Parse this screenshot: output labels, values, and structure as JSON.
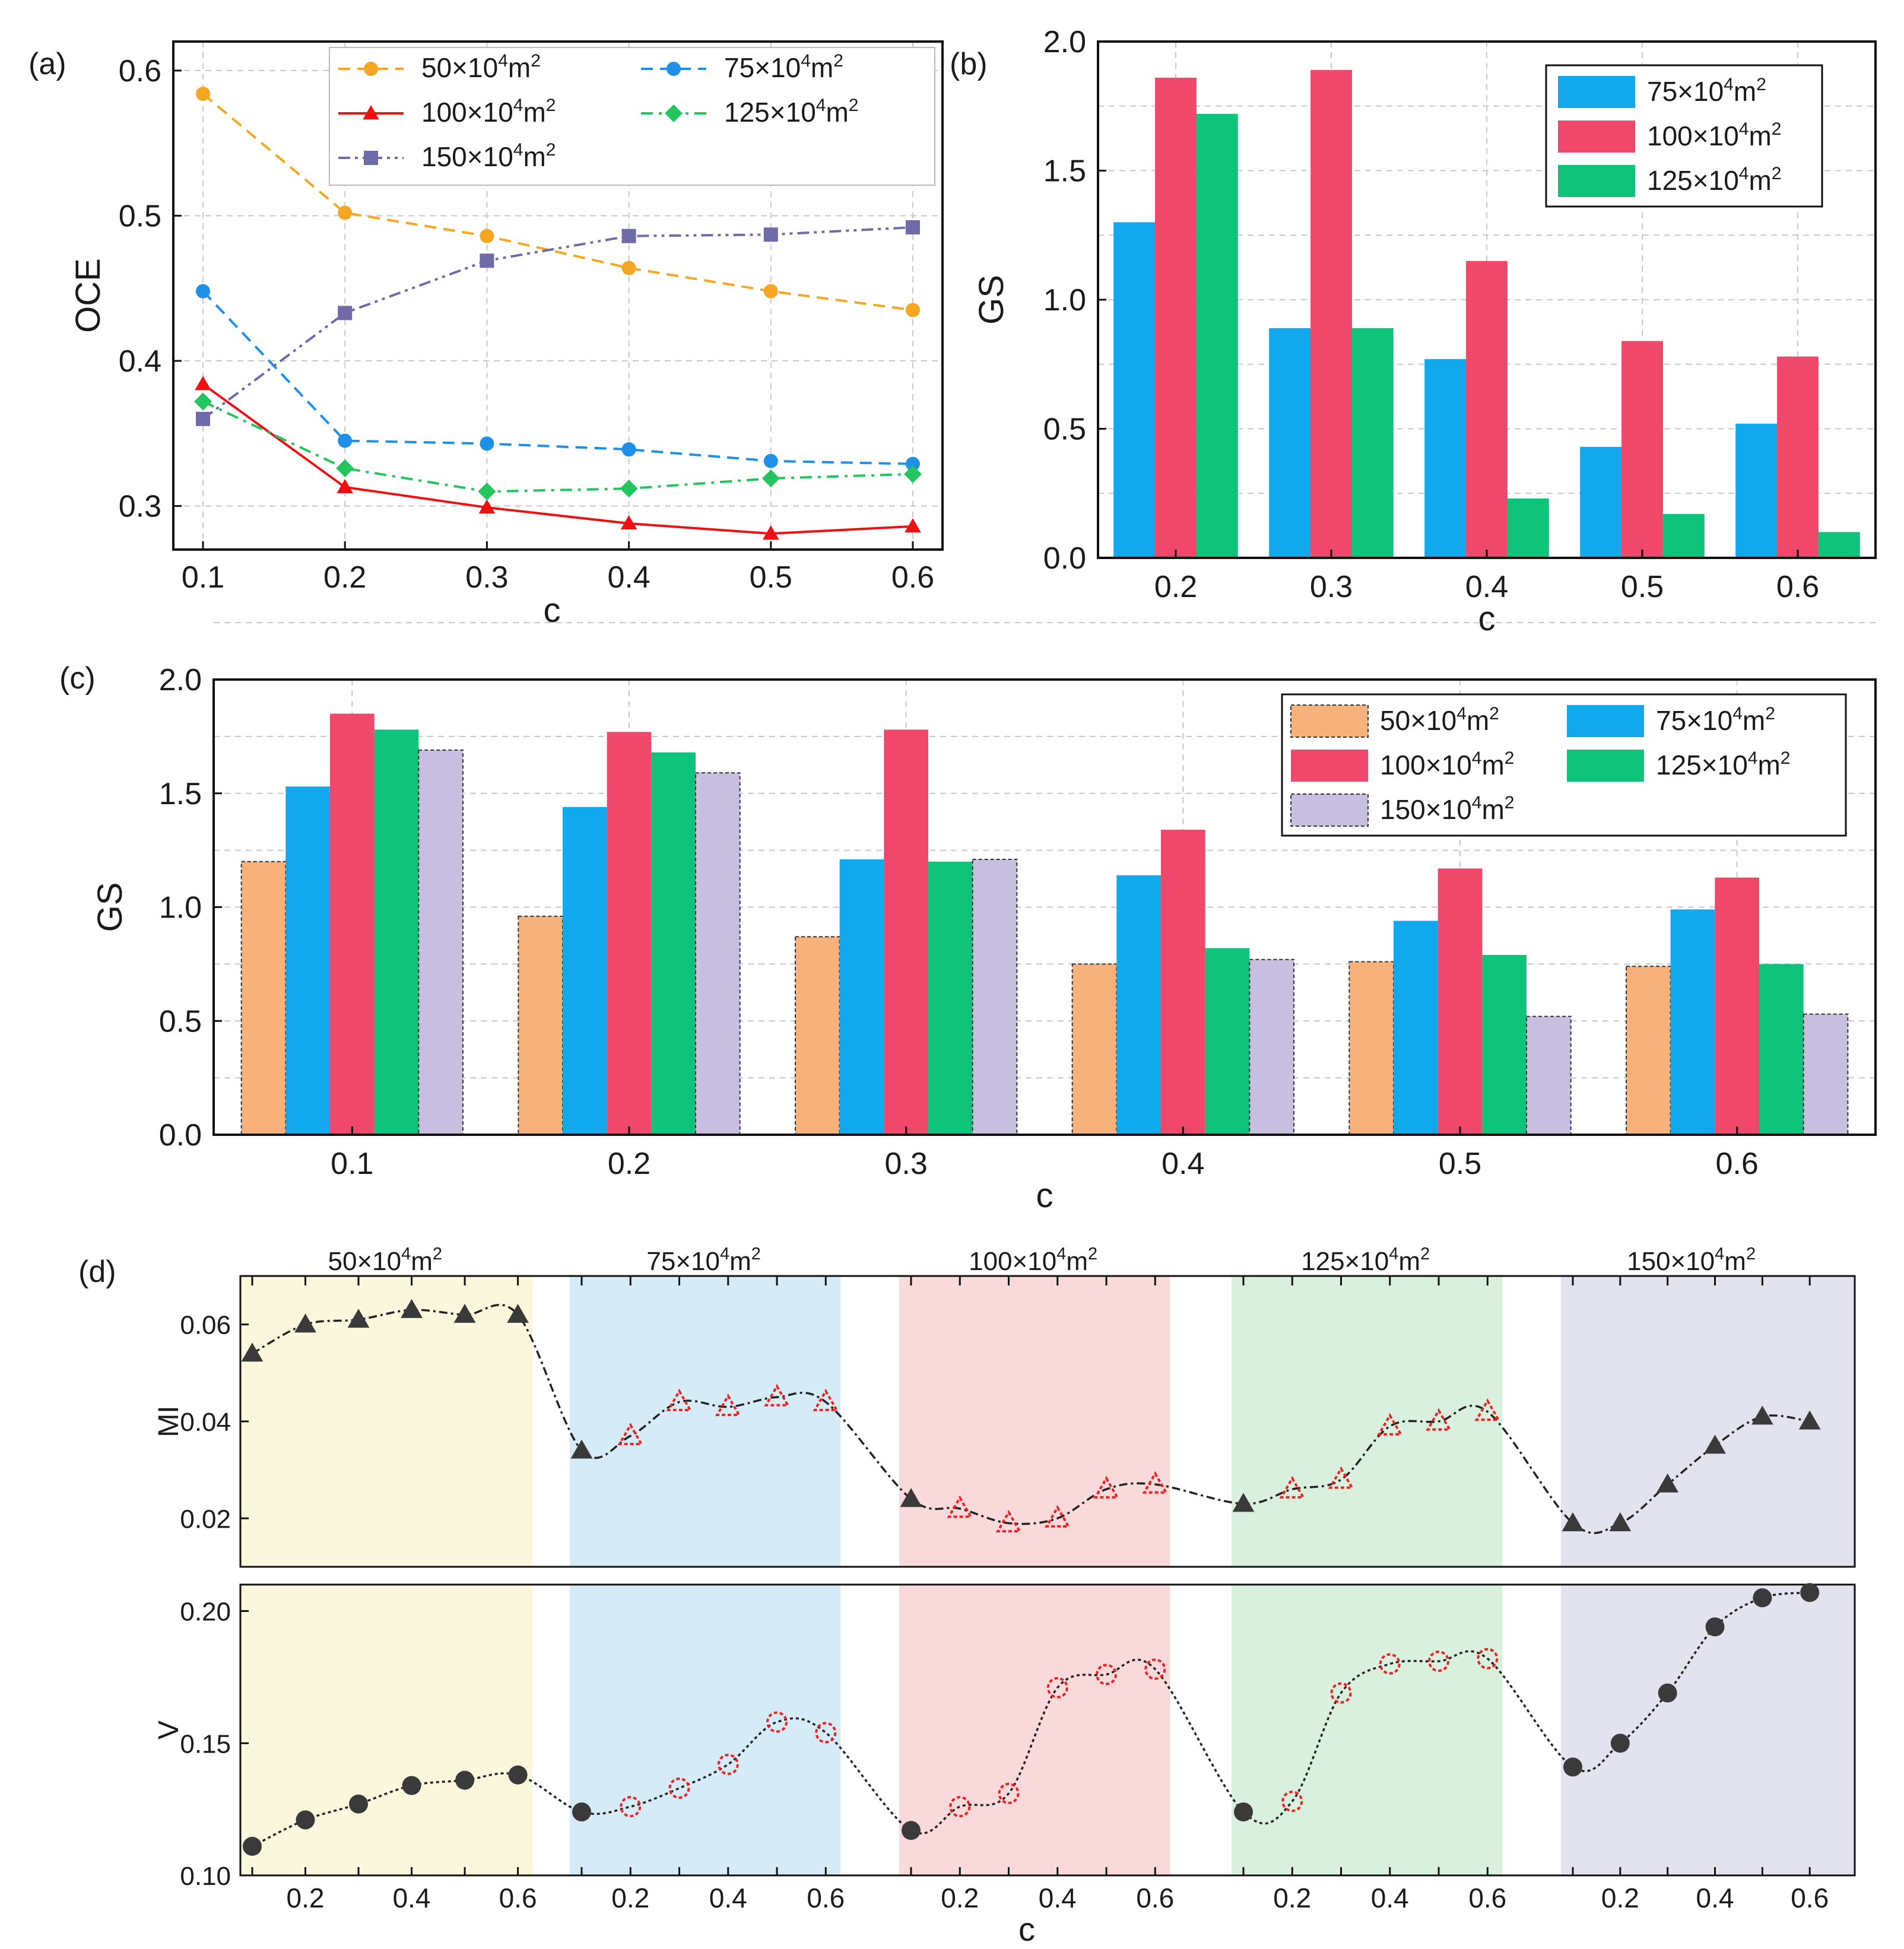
{
  "panel_labels": [
    "(a)",
    "(b)",
    "(c)",
    "(d)"
  ],
  "colors": {
    "50": "#f5a623",
    "75": "#1e90e8",
    "100": "#ee1111",
    "125": "#22c55e",
    "150": "#6f6aa8",
    "bar50": "#f6b27a",
    "bar75": "#12a8ee",
    "bar100": "#f0486a",
    "bar125": "#0fc47a",
    "bar150": "#c8bfe0",
    "regions": [
      "#fbf7dc",
      "#d5ecf8",
      "#f9d9d9",
      "#d9f0df",
      "#e3e3f0"
    ]
  },
  "chart_data": [
    {
      "id": "a",
      "type": "line",
      "xlabel": "c",
      "ylabel": "OCE",
      "x": [
        0.1,
        0.2,
        0.3,
        0.4,
        0.5,
        0.6
      ],
      "xticks": [
        "0.1",
        "0.2",
        "0.3",
        "0.4",
        "0.5",
        "0.6"
      ],
      "ylim": [
        0.27,
        0.62
      ],
      "yticks": [
        "0.3",
        "0.4",
        "0.5",
        "0.6"
      ],
      "series": [
        {
          "name": "50×10",
          "sup": "4",
          "unit": "m",
          "sup2": "2",
          "key": "50",
          "marker": "circle",
          "dash": "dashed",
          "values": [
            0.584,
            0.502,
            0.486,
            0.464,
            0.448,
            0.435
          ]
        },
        {
          "name": "75×10",
          "sup": "4",
          "unit": "m",
          "sup2": "2",
          "key": "75",
          "marker": "circle",
          "dash": "dashed",
          "values": [
            0.448,
            0.345,
            0.343,
            0.339,
            0.331,
            0.329
          ]
        },
        {
          "name": "100×10",
          "sup": "4",
          "unit": "m",
          "sup2": "2",
          "key": "100",
          "marker": "triangle",
          "dash": "solid",
          "values": [
            0.384,
            0.313,
            0.299,
            0.288,
            0.281,
            0.286
          ]
        },
        {
          "name": "125×10",
          "sup": "4",
          "unit": "m",
          "sup2": "2",
          "key": "125",
          "marker": "diamond",
          "dash": "dashdot",
          "values": [
            0.372,
            0.326,
            0.31,
            0.312,
            0.319,
            0.322
          ]
        },
        {
          "name": "150×10",
          "sup": "4",
          "unit": "m",
          "sup2": "2",
          "key": "150",
          "marker": "square",
          "dash": "dashdotdot",
          "values": [
            0.36,
            0.433,
            0.469,
            0.486,
            0.487,
            0.492
          ]
        }
      ]
    },
    {
      "id": "b",
      "type": "bar",
      "xlabel": "c",
      "ylabel": "GS",
      "categories": [
        "0.2",
        "0.3",
        "0.4",
        "0.5",
        "0.6"
      ],
      "ylim": [
        0,
        2.0
      ],
      "yticks": [
        "0.0",
        "0.5",
        "1.0",
        "1.5",
        "2.0"
      ],
      "series": [
        {
          "name": "75×10",
          "sup": "4",
          "unit": "m",
          "sup2": "2",
          "key": "bar75",
          "values": [
            1.3,
            0.89,
            0.77,
            0.43,
            0.52
          ]
        },
        {
          "name": "100×10",
          "sup": "4",
          "unit": "m",
          "sup2": "2",
          "key": "bar100",
          "values": [
            1.86,
            1.89,
            1.15,
            0.84,
            0.78
          ]
        },
        {
          "name": "125×10",
          "sup": "4",
          "unit": "m",
          "sup2": "2",
          "key": "bar125",
          "values": [
            1.72,
            0.89,
            0.23,
            0.17,
            0.1
          ]
        }
      ]
    },
    {
      "id": "c",
      "type": "bar",
      "xlabel": "c",
      "ylabel": "GS",
      "categories": [
        "0.1",
        "0.2",
        "0.3",
        "0.4",
        "0.5",
        "0.6"
      ],
      "ylim": [
        0,
        2.0
      ],
      "yticks": [
        "0.0",
        "0.5",
        "1.0",
        "1.5",
        "2.0"
      ],
      "series": [
        {
          "name": "50×10",
          "sup": "4",
          "unit": "m",
          "sup2": "2",
          "key": "bar50",
          "values": [
            1.2,
            0.96,
            0.87,
            0.75,
            0.76,
            0.74
          ]
        },
        {
          "name": "75×10",
          "sup": "4",
          "unit": "m",
          "sup2": "2",
          "key": "bar75",
          "values": [
            1.53,
            1.44,
            1.21,
            1.14,
            0.94,
            0.99
          ]
        },
        {
          "name": "100×10",
          "sup": "4",
          "unit": "m",
          "sup2": "2",
          "key": "bar100",
          "values": [
            1.85,
            1.77,
            1.78,
            1.34,
            1.17,
            1.13
          ]
        },
        {
          "name": "125×10",
          "sup": "4",
          "unit": "m",
          "sup2": "2",
          "key": "bar125",
          "values": [
            1.78,
            1.68,
            1.2,
            0.82,
            0.79,
            0.75
          ]
        },
        {
          "name": "150×10",
          "sup": "4",
          "unit": "m",
          "sup2": "2",
          "key": "bar150",
          "values": [
            1.69,
            1.59,
            1.21,
            0.77,
            0.52,
            0.53
          ]
        }
      ]
    },
    {
      "id": "d",
      "type": "line",
      "xlabel": "c",
      "group_ticks": [
        "0.2",
        "0.4",
        "0.6"
      ],
      "groups": [
        {
          "name": "50×10",
          "sup": "4",
          "unit": "m",
          "sup2": "2",
          "x": [
            0.1,
            0.2,
            0.3,
            0.4,
            0.5,
            0.6
          ],
          "hollow": [
            false,
            false,
            false,
            false,
            false,
            false
          ],
          "hollow_v": [
            false,
            false,
            false,
            false,
            false,
            false
          ]
        },
        {
          "name": "75×10",
          "sup": "4",
          "unit": "m",
          "sup2": "2",
          "x": [
            0.1,
            0.2,
            0.3,
            0.4,
            0.5,
            0.6
          ],
          "hollow": [
            false,
            true,
            true,
            true,
            true,
            true
          ],
          "hollow_v": [
            false,
            true,
            true,
            true,
            true,
            true
          ]
        },
        {
          "name": "100×10",
          "sup": "4",
          "unit": "m",
          "sup2": "2",
          "x": [
            0.1,
            0.2,
            0.3,
            0.4,
            0.5,
            0.6
          ],
          "hollow": [
            false,
            true,
            true,
            true,
            true,
            true
          ],
          "hollow_v": [
            false,
            true,
            true,
            true,
            true,
            true
          ]
        },
        {
          "name": "125×10",
          "sup": "4",
          "unit": "m",
          "sup2": "2",
          "x": [
            0.1,
            0.2,
            0.3,
            0.4,
            0.5,
            0.6
          ],
          "hollow": [
            false,
            true,
            true,
            true,
            true,
            true
          ],
          "hollow_v": [
            false,
            true,
            true,
            true,
            true,
            true
          ]
        },
        {
          "name": "150×10",
          "sup": "4",
          "unit": "m",
          "sup2": "2",
          "x": [
            0.1,
            0.2,
            0.3,
            0.4,
            0.5,
            0.6
          ],
          "hollow": [
            false,
            false,
            false,
            false,
            false,
            false
          ],
          "hollow_v": [
            false,
            false,
            false,
            false,
            false,
            false
          ]
        }
      ],
      "subplots": [
        {
          "ylabel": "MI",
          "ylim": [
            0.01,
            0.07
          ],
          "yticks": [
            "0.02",
            "0.04",
            "0.06"
          ],
          "ytick_values": [
            0.02,
            0.04,
            0.06
          ],
          "marker": "triangle",
          "values": [
            0.054,
            0.06,
            0.061,
            0.063,
            0.062,
            0.062,
            0.034,
            0.037,
            0.044,
            0.043,
            0.045,
            0.044,
            0.024,
            0.022,
            0.019,
            0.02,
            0.026,
            0.027,
            0.023,
            0.026,
            0.028,
            0.039,
            0.04,
            0.042,
            0.019,
            0.019,
            0.027,
            0.035,
            0.041,
            0.04
          ]
        },
        {
          "ylabel": "V",
          "ylim": [
            0.1,
            0.21
          ],
          "yticks": [
            "0.10",
            "0.15",
            "0.20"
          ],
          "ytick_values": [
            0.1,
            0.15,
            0.2
          ],
          "marker": "circle",
          "values": [
            0.111,
            0.121,
            0.127,
            0.134,
            0.136,
            0.138,
            0.124,
            0.126,
            0.133,
            0.142,
            0.158,
            0.154,
            0.117,
            0.126,
            0.131,
            0.171,
            0.176,
            0.178,
            0.124,
            0.128,
            0.169,
            0.18,
            0.181,
            0.182,
            0.141,
            0.15,
            0.169,
            0.194,
            0.205,
            0.207
          ]
        }
      ]
    }
  ]
}
